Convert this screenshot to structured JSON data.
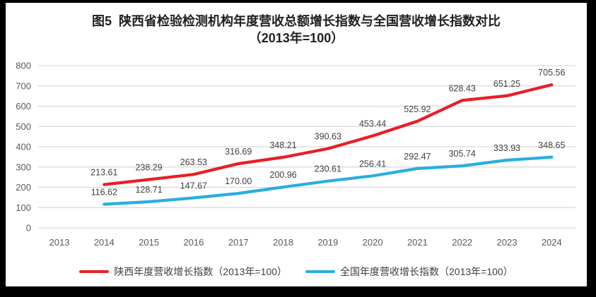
{
  "title": {
    "line1": "图5  陕西省检验检测机构年度营收总额增长指数与全国营收增长指数对比",
    "line2": "（2013年=100）"
  },
  "colors": {
    "background": "#ffffff",
    "frame": "#000000",
    "gridline": "#d9d9d9",
    "tick_text": "#595959",
    "data_label_text": "#404040",
    "title_text": "#1f1f1f",
    "shaanxi_red": "#e81f25",
    "national_blue": "#29aee3"
  },
  "chart_data": {
    "type": "line",
    "title": "图5 陕西省检验检测机构年度营收总额增长指数与全国营收增长指数对比（2013年=100）",
    "categories": [
      "2013",
      "2014",
      "2015",
      "2016",
      "2017",
      "2018",
      "2019",
      "2020",
      "2021",
      "2022",
      "2023",
      "2024"
    ],
    "xlabel": "",
    "ylabel": "",
    "ylim": [
      0,
      800
    ],
    "yticks": [
      0,
      100,
      200,
      300,
      400,
      500,
      600,
      700,
      800
    ],
    "grid": "horizontal",
    "legend_position": "bottom",
    "series": [
      {
        "name": "陕西年度营收增长指数（2013年=100）",
        "color": "#e81f25",
        "start_index": 1,
        "values": [
          213.61,
          238.29,
          263.53,
          316.69,
          348.21,
          390.63,
          453.44,
          525.92,
          628.43,
          651.25,
          705.56
        ],
        "value_labels": [
          "213.61",
          "238.29",
          "263.53",
          "316.69",
          "348.21",
          "390.63",
          "453.44",
          "525.92",
          "628.43",
          "651.25",
          "705.56"
        ]
      },
      {
        "name": "全国年度营收增长指数（2013年=100）",
        "color": "#29aee3",
        "start_index": 1,
        "values": [
          116.62,
          128.71,
          147.67,
          170.0,
          200.96,
          230.61,
          256.41,
          292.47,
          305.74,
          333.93,
          348.65
        ],
        "value_labels": [
          "116.62",
          "128.71",
          "147.67",
          "170.00",
          "200.96",
          "230.61",
          "256.41",
          "292.47",
          "305.74",
          "333.93",
          "348.65"
        ]
      }
    ]
  }
}
